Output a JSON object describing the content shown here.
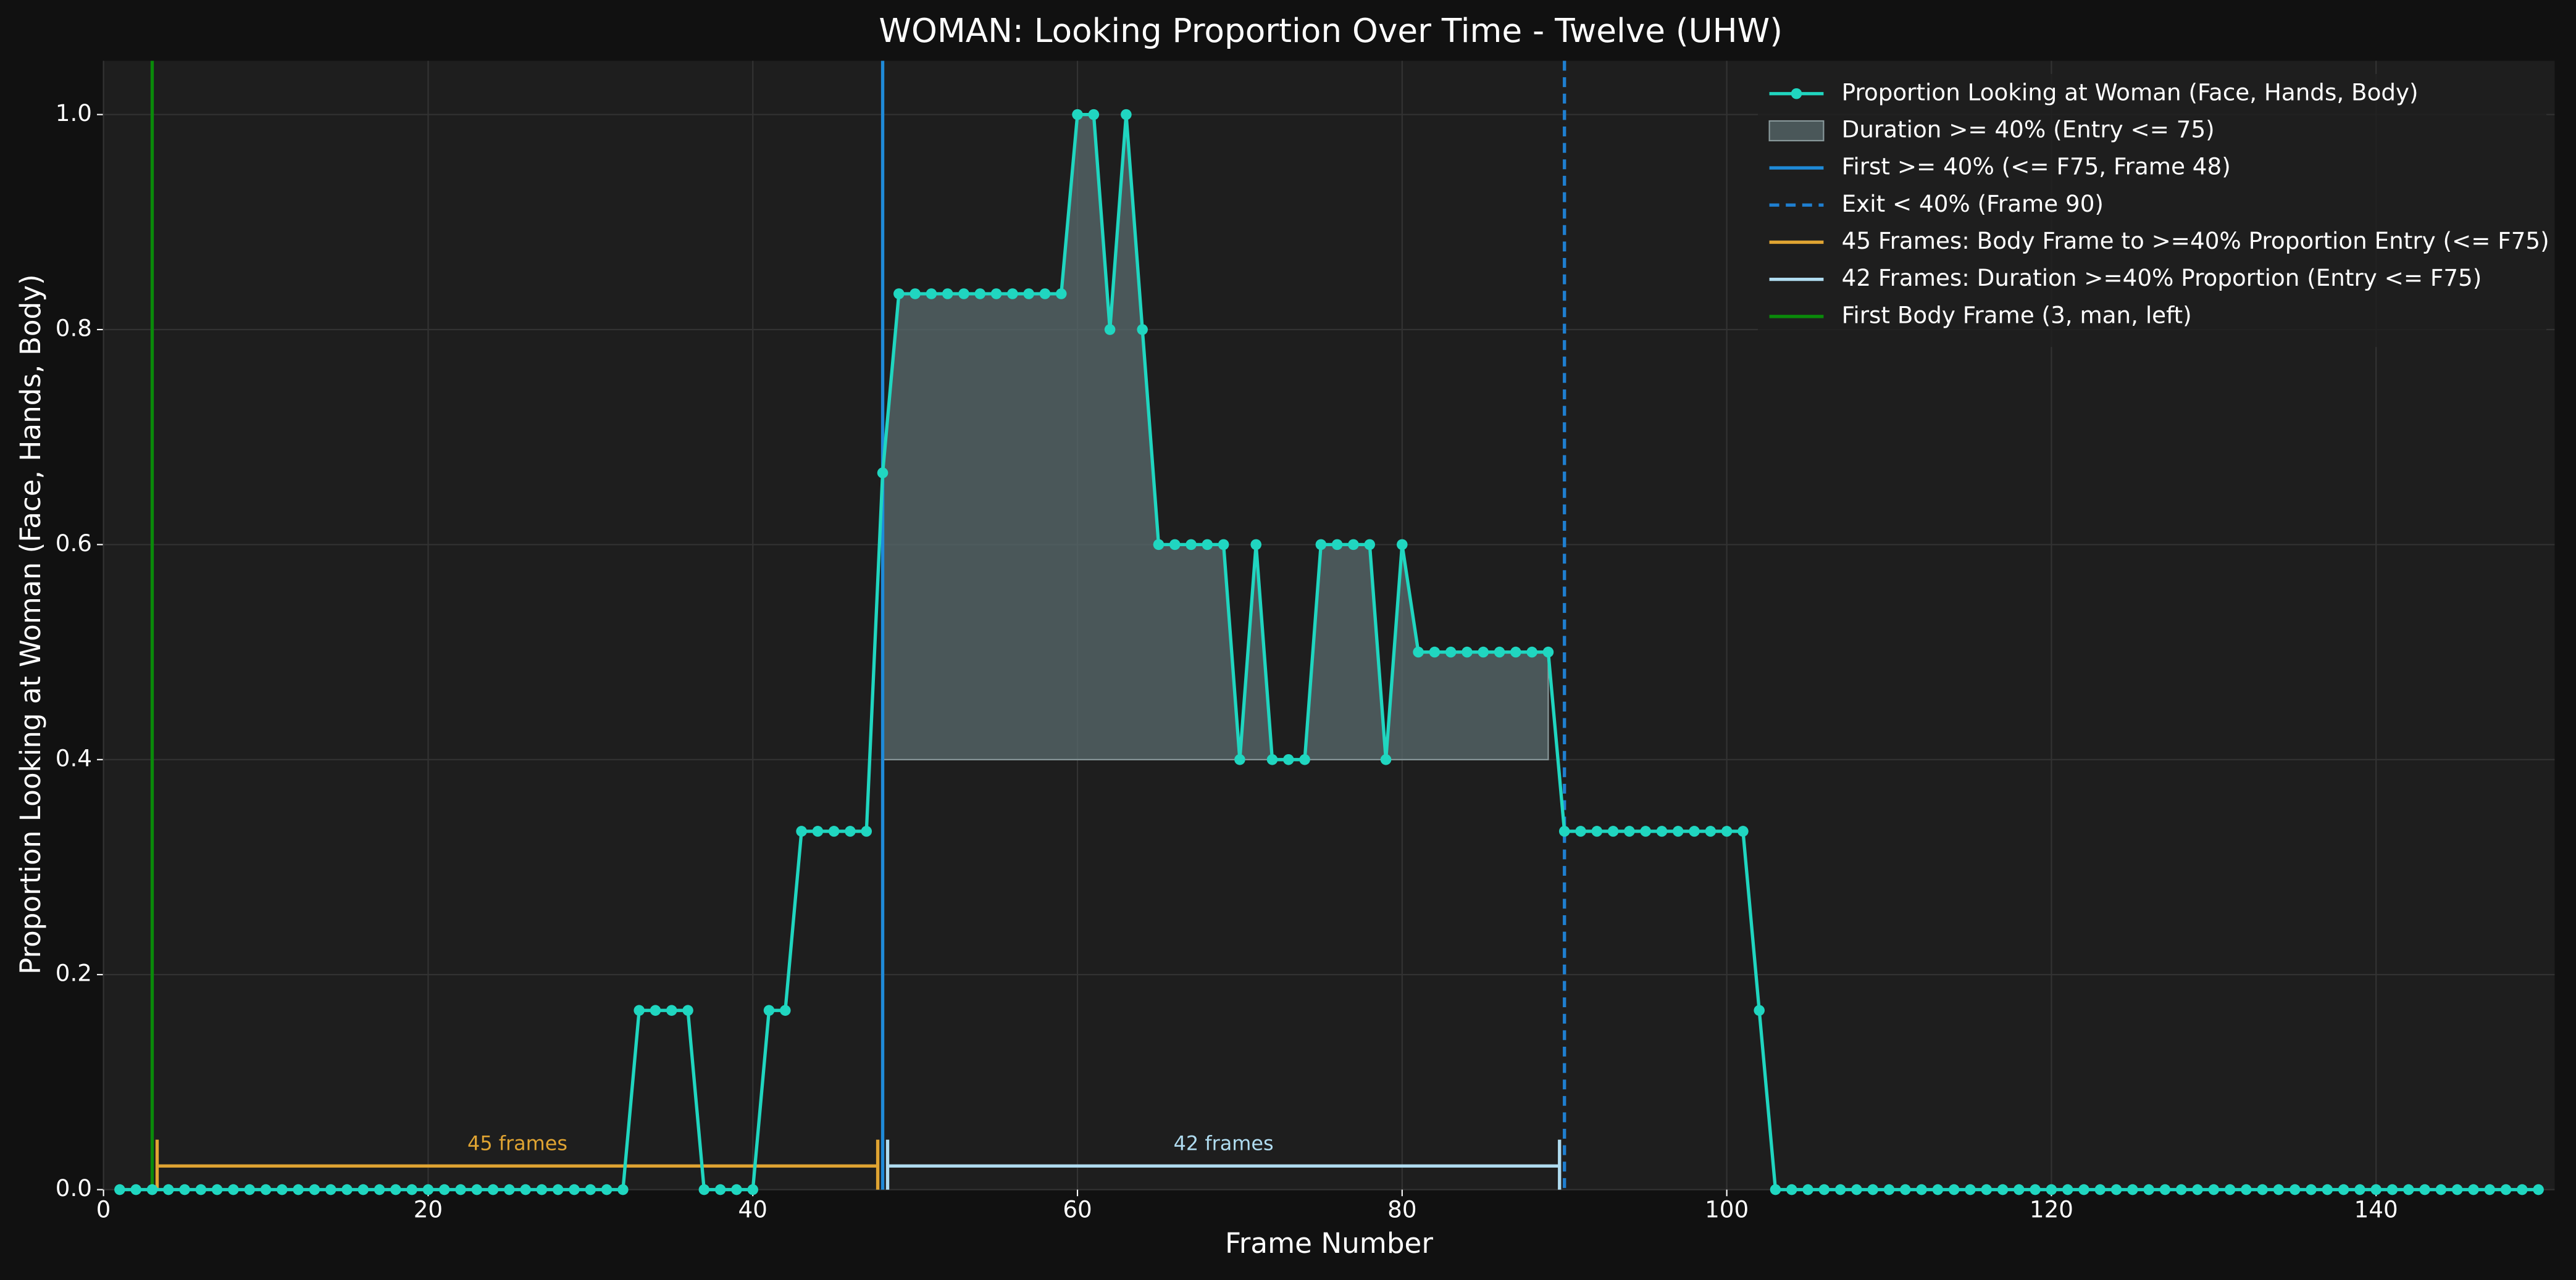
{
  "chart_data": {
    "type": "line",
    "title": "WOMAN: Looking Proportion Over Time - Twelve (UHW)",
    "xlabel": "Frame Number",
    "ylabel": "Proportion Looking at Woman (Face, Hands, Body)",
    "xlim": [
      0,
      151
    ],
    "ylim": [
      0,
      1.05
    ],
    "xticks": [
      0,
      20,
      40,
      60,
      80,
      100,
      120,
      140
    ],
    "yticks": [
      {
        "value": 0,
        "label": "0.0"
      },
      0.2,
      0.4,
      0.6,
      0.8,
      {
        "value": 1,
        "label": "1.0"
      }
    ],
    "grid": true,
    "legend": "upper right",
    "x": [
      1,
      2,
      3,
      4,
      5,
      6,
      7,
      8,
      9,
      10,
      11,
      12,
      13,
      14,
      15,
      16,
      17,
      18,
      19,
      20,
      21,
      22,
      23,
      24,
      25,
      26,
      27,
      28,
      29,
      30,
      31,
      32,
      33,
      34,
      35,
      36,
      37,
      38,
      39,
      40,
      41,
      42,
      43,
      44,
      45,
      46,
      47,
      48,
      49,
      50,
      51,
      52,
      53,
      54,
      55,
      56,
      57,
      58,
      59,
      60,
      61,
      62,
      63,
      64,
      65,
      66,
      67,
      68,
      69,
      70,
      71,
      72,
      73,
      74,
      75,
      76,
      77,
      78,
      79,
      80,
      81,
      82,
      83,
      84,
      85,
      86,
      87,
      88,
      89,
      90,
      91,
      92,
      93,
      94,
      95,
      96,
      97,
      98,
      99,
      100,
      101,
      102,
      103,
      104,
      105,
      106,
      107,
      108,
      109,
      110,
      111,
      112,
      113,
      114,
      115,
      116,
      117,
      118,
      119,
      120,
      121,
      122,
      123,
      124,
      125,
      126,
      127,
      128,
      129,
      130,
      131,
      132,
      133,
      134,
      135,
      136,
      137,
      138,
      139,
      140,
      141,
      142,
      143,
      144,
      145,
      146,
      147,
      148,
      149,
      150
    ],
    "series": [
      {
        "name": "Proportion Looking at Woman (Face, Hands, Body)",
        "color": "#20d6c0",
        "values": [
          0,
          0,
          0,
          0,
          0,
          0,
          0,
          0,
          0,
          0,
          0,
          0,
          0,
          0,
          0,
          0,
          0,
          0,
          0,
          0,
          0,
          0,
          0,
          0,
          0,
          0,
          0,
          0,
          0,
          0,
          0,
          0,
          0.1667,
          0.1667,
          0.1667,
          0.1667,
          0,
          0,
          0,
          0,
          0.1667,
          0.1667,
          0.3333,
          0.3333,
          0.3333,
          0.3333,
          0.3333,
          0.6667,
          0.8333,
          0.8333,
          0.8333,
          0.8333,
          0.8333,
          0.8333,
          0.8333,
          0.8333,
          0.8333,
          0.8333,
          0.8333,
          1,
          1,
          0.8,
          1,
          0.8,
          0.6,
          0.6,
          0.6,
          0.6,
          0.6,
          0.4,
          0.6,
          0.4,
          0.4,
          0.4,
          0.6,
          0.6,
          0.6,
          0.6,
          0.4,
          0.6,
          0.5,
          0.5,
          0.5,
          0.5,
          0.5,
          0.5,
          0.5,
          0.5,
          0.5,
          0.3333,
          0.3333,
          0.3333,
          0.3333,
          0.3333,
          0.3333,
          0.3333,
          0.3333,
          0.3333,
          0.3333,
          0.3333,
          0.3333,
          0.1667,
          0,
          0,
          0,
          0,
          0,
          0,
          0,
          0,
          0,
          0,
          0,
          0,
          0,
          0,
          0,
          0,
          0,
          0,
          0,
          0,
          0,
          0,
          0,
          0,
          0,
          0,
          0,
          0,
          0,
          0,
          0,
          0,
          0,
          0,
          0,
          0,
          0,
          0,
          0,
          0,
          0,
          0,
          0,
          0,
          0,
          0,
          0,
          0
        ]
      }
    ],
    "overlays": [
      {
        "kind": "fill",
        "name": "Duration >= 40% (Entry <= 75)",
        "color": "#5a6b6e",
        "base": 0.4,
        "from": 48,
        "to": 89
      },
      {
        "kind": "vline",
        "name": "First >= 40% (<= F75, Frame 48)",
        "color": "#1f8ad8",
        "x": 48,
        "dashed": false
      },
      {
        "kind": "vline",
        "name": "Exit < 40% (Frame 90)",
        "color": "#1f7fd0",
        "x": 90,
        "dashed": true
      },
      {
        "kind": "bracket",
        "name": "45 Frames: Body Frame to >=40% Proportion Entry (<= F75)",
        "label": "45 frames",
        "color": "#e0a432",
        "start": 3,
        "end": 48,
        "y": 0.022
      },
      {
        "kind": "bracket",
        "name": "42 Frames: Duration >=40% Proportion (Entry <= F75)",
        "label": "42 frames",
        "color": "#b0dcf0",
        "start": 48,
        "end": 90,
        "y": 0.022
      },
      {
        "kind": "vline",
        "name": "First Body Frame (3, man, left)",
        "color": "#0a8a0a",
        "x": 3,
        "dashed": false
      }
    ]
  }
}
